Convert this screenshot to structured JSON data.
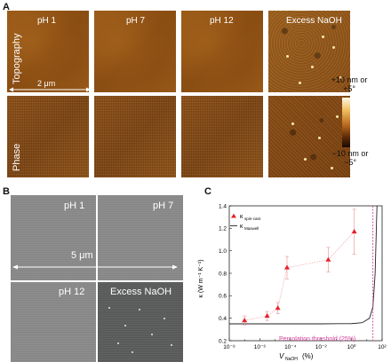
{
  "panel_a": {
    "letter": "A",
    "row_labels": [
      "Topography",
      "Phase"
    ],
    "columns": [
      "pH 1",
      "pH 7",
      "pH 12",
      "Excess NaOH"
    ],
    "scale_bar": "2 μm",
    "colorbar_top": [
      "+10 nm or",
      "+5°"
    ],
    "colorbar_bottom": [
      "−10 nm or",
      "−5°"
    ]
  },
  "panel_b": {
    "letter": "B",
    "columns": [
      "pH 1",
      "pH 7",
      "pH 12",
      "Excess NaOH"
    ],
    "scale_bar": "5 μm"
  },
  "panel_c": {
    "letter": "C",
    "ylabel": "κ (W m⁻¹ K⁻¹)",
    "xlabel_main": "V",
    "xlabel_sub": "NaOH",
    "xlabel_unit": "(%)",
    "annotation": "Percolation threshold (25%)",
    "colors": {
      "data": "#e8202a",
      "model": "#222222",
      "threshold": "#d2449a"
    }
  },
  "chart_data": {
    "type": "scatter",
    "xscale": "log",
    "xlim": [
      1e-08,
      100
    ],
    "ylim": [
      0.2,
      1.4
    ],
    "x_ticks": [
      "10⁻⁸",
      "10⁻⁶",
      "10⁻⁴",
      "10⁻²",
      "10⁰",
      "10²"
    ],
    "y_ticks": [
      "0.2",
      "0.4",
      "0.6",
      "0.8",
      "1.0",
      "1.2",
      "1.4"
    ],
    "legend_placement": "top-left",
    "series": [
      {
        "name": "κspin-cast",
        "legend_main": "κ",
        "legend_sub": "spin-cast",
        "kind": "points",
        "points": [
          {
            "x": 1e-07,
            "y": 0.38,
            "err": 0.04
          },
          {
            "x": 3e-06,
            "y": 0.42,
            "err": 0.04
          },
          {
            "x": 1.5e-05,
            "y": 0.49,
            "err": 0.05
          },
          {
            "x": 6e-05,
            "y": 0.85,
            "err": 0.1
          },
          {
            "x": 0.03,
            "y": 0.92,
            "err": 0.11
          },
          {
            "x": 1.5,
            "y": 1.17,
            "err": 0.2
          }
        ]
      },
      {
        "name": "κMaxwell",
        "legend_main": "κ",
        "legend_sub": "Maxwell",
        "kind": "line",
        "points": [
          {
            "x": 1e-08,
            "y": 0.35
          },
          {
            "x": 0.01,
            "y": 0.35
          },
          {
            "x": 1,
            "y": 0.352
          },
          {
            "x": 5,
            "y": 0.36
          },
          {
            "x": 15,
            "y": 0.4
          },
          {
            "x": 25,
            "y": 0.5
          },
          {
            "x": 35,
            "y": 0.8
          },
          {
            "x": 42,
            "y": 1.2
          },
          {
            "x": 46,
            "y": 1.45
          }
        ]
      }
    ],
    "threshold_x": 25
  }
}
